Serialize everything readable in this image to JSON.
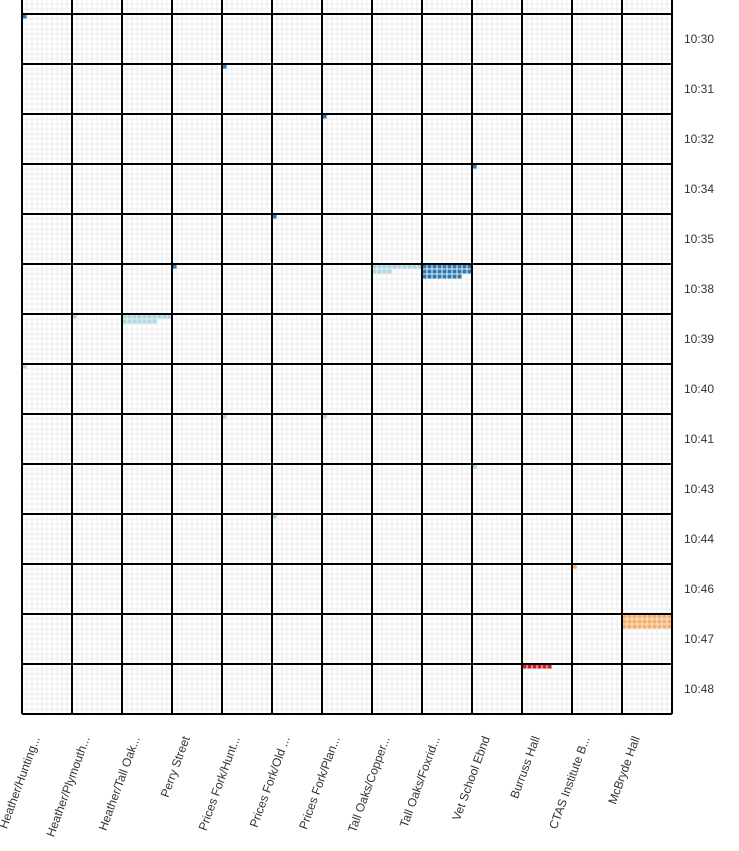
{
  "chart_data": {
    "type": "heatmap",
    "title": "",
    "xlabel": "",
    "ylabel": "",
    "x_categories": [
      "Heather/Hunting...",
      "Heather/Plymouth...",
      "Heather/Tall Oak...",
      "Perry Street",
      "Prices Fork/Hunt...",
      "Prices Fork/Old ...",
      "Prices Fork/Plan...",
      "Tall Oaks/Copper...",
      "Tall Oaks/Foxrid...",
      "Vet School Ebnd",
      "Burruss Hall",
      "CTAS Institute B...",
      "McBryde Hall"
    ],
    "y_categories": [
      "10:30",
      "10:31",
      "10:32",
      "10:34",
      "10:35",
      "10:38",
      "10:39",
      "10:40",
      "10:41",
      "10:43",
      "10:44",
      "10:46",
      "10:47",
      "10:48"
    ],
    "cells_per_tile": 10,
    "colors": {
      "dark_blue": "#2c7bb6",
      "light_blue": "#abd9e9",
      "orange": "#fdae61",
      "red": "#d7191c",
      "grid_major": "#000000",
      "grid_minor": "#ebebeb"
    },
    "tiles": [
      {
        "x": "Heather/Hunting...",
        "y": "10:30",
        "count": 1,
        "color": "dark_blue"
      },
      {
        "x": "Prices Fork/Hunt...",
        "y": "10:31",
        "count": 1,
        "color": "dark_blue"
      },
      {
        "x": "Prices Fork/Plan...",
        "y": "10:32",
        "count": 1,
        "color": "dark_blue"
      },
      {
        "x": "Vet School Ebnd",
        "y": "10:34",
        "count": 1,
        "color": "dark_blue"
      },
      {
        "x": "Prices Fork/Old ...",
        "y": "10:35",
        "count": 1,
        "color": "dark_blue"
      },
      {
        "x": "Perry Street",
        "y": "10:38",
        "count": 1,
        "color": "dark_blue"
      },
      {
        "x": "Tall Oaks/Copper...",
        "y": "10:38",
        "count": 14,
        "color": "light_blue"
      },
      {
        "x": "Tall Oaks/Foxrid...",
        "y": "10:38",
        "count": 28,
        "color": "dark_blue"
      },
      {
        "x": "Heather/Plymouth...",
        "y": "10:39",
        "count": 1,
        "color": "light_blue"
      },
      {
        "x": "Heather/Tall Oak...",
        "y": "10:39",
        "count": 17,
        "color": "light_blue"
      },
      {
        "x": "Heather/Hunting...",
        "y": "10:40",
        "count": 1,
        "color": "light_blue"
      },
      {
        "x": "Prices Fork/Hunt...",
        "y": "10:41",
        "count": 1,
        "color": "light_blue"
      },
      {
        "x": "Prices Fork/Plan...",
        "y": "10:41",
        "count": 1,
        "color": "light_blue"
      },
      {
        "x": "Vet School Ebnd",
        "y": "10:43",
        "count": 1,
        "color": "light_blue"
      },
      {
        "x": "Prices Fork/Old ...",
        "y": "10:44",
        "count": 1,
        "color": "light_blue"
      },
      {
        "x": "CTAS Institute B...",
        "y": "10:46",
        "count": 1,
        "color": "orange"
      },
      {
        "x": "McBryde Hall",
        "y": "10:47",
        "count": 30,
        "color": "orange"
      },
      {
        "x": "Burruss Hall",
        "y": "10:48",
        "count": 6,
        "color": "red"
      }
    ],
    "legend": "none",
    "grid": true
  }
}
